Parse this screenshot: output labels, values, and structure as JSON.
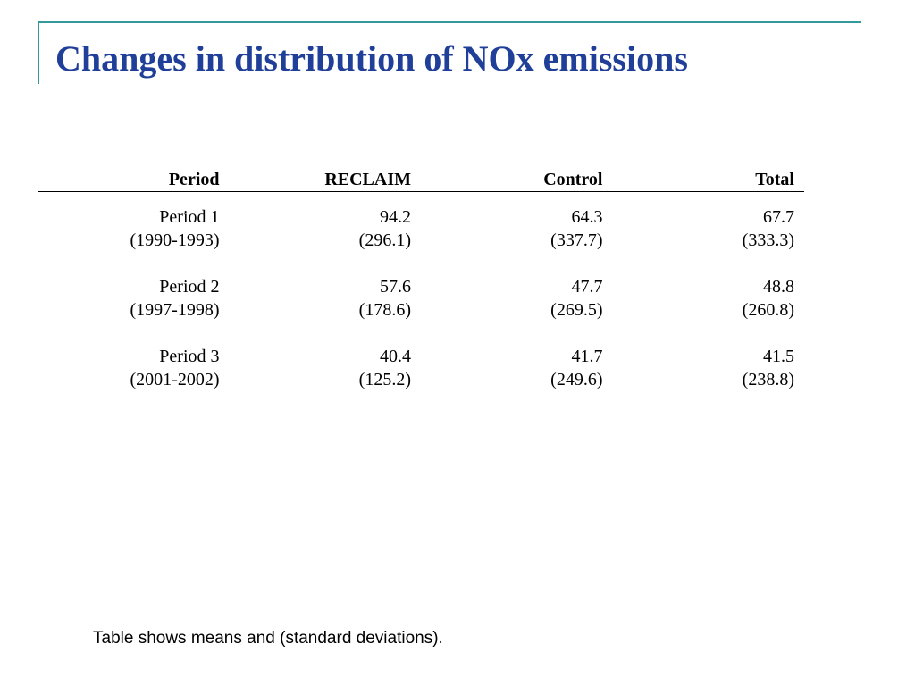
{
  "title": "Changes in distribution of NOx emissions",
  "table": {
    "headers": [
      "Period",
      "RECLAIM",
      "Control",
      "Total"
    ],
    "rows": [
      {
        "period": "Period 1",
        "years": "(1990-1993)",
        "reclaim_mean": "94.2",
        "reclaim_sd": "(296.1)",
        "control_mean": "64.3",
        "control_sd": "(337.7)",
        "total_mean": "67.7",
        "total_sd": "(333.3)"
      },
      {
        "period": "Period 2",
        "years": "(1997-1998)",
        "reclaim_mean": "57.6",
        "reclaim_sd": "(178.6)",
        "control_mean": "47.7",
        "control_sd": "(269.5)",
        "total_mean": "48.8",
        "total_sd": "(260.8)"
      },
      {
        "period": "Period 3",
        "years": "(2001-2002)",
        "reclaim_mean": "40.4",
        "reclaim_sd": "(125.2)",
        "control_mean": "41.7",
        "control_sd": "(249.6)",
        "total_mean": "41.5",
        "total_sd": "(238.8)"
      }
    ]
  },
  "footnote": "Table shows means and (standard deviations).",
  "colors": {
    "title": "#1f3f99",
    "accent_rule": "#339999"
  }
}
